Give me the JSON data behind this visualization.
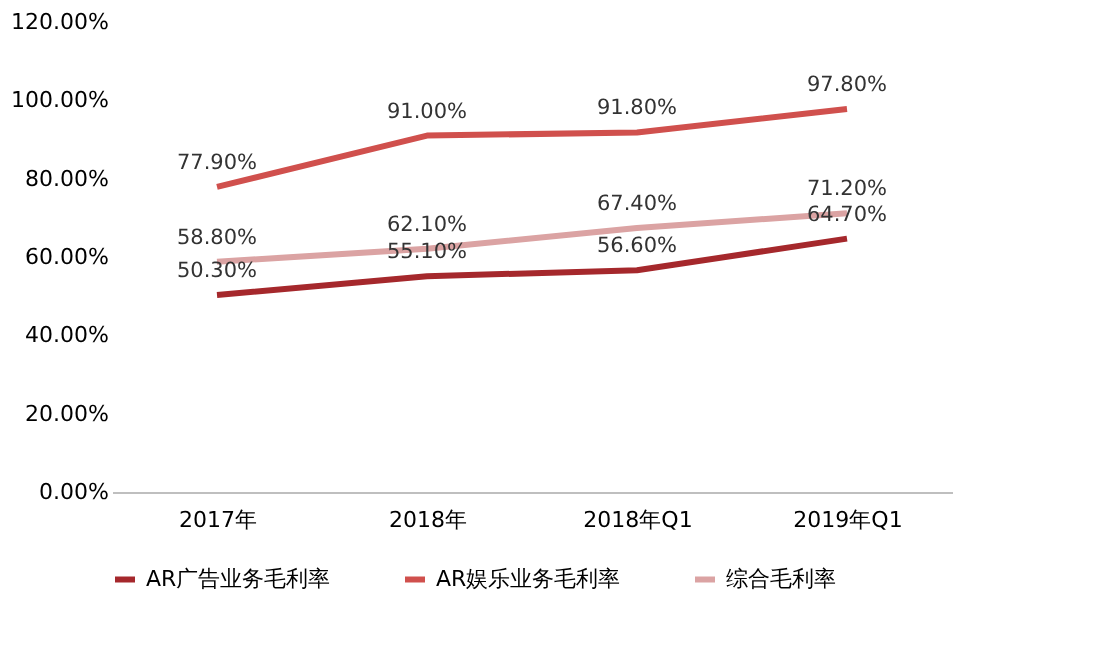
{
  "chart_data": {
    "type": "line",
    "categories": [
      "2017年",
      "2018年",
      "2018年Q1",
      "2019年Q1"
    ],
    "series": [
      {
        "name": "AR广告业务毛利率",
        "color": "#a5282c",
        "values": [
          50.3,
          55.1,
          56.6,
          64.7
        ],
        "value_labels": [
          "50.30%",
          "55.10%",
          "56.60%",
          "64.70%"
        ]
      },
      {
        "name": "AR娱乐业务毛利率",
        "color": "#d0504d",
        "values": [
          77.9,
          91.0,
          91.8,
          97.8
        ],
        "value_labels": [
          "77.90%",
          "91.00%",
          "91.80%",
          "97.80%"
        ]
      },
      {
        "name": "综合毛利率",
        "color": "#dba3a3",
        "values": [
          58.8,
          62.1,
          67.4,
          71.2
        ],
        "value_labels": [
          "58.80%",
          "62.10%",
          "67.40%",
          "71.20%"
        ]
      }
    ],
    "ylim": [
      0,
      120
    ],
    "yticks": [
      {
        "value": 0,
        "label": "0.00%"
      },
      {
        "value": 20,
        "label": "20.00%"
      },
      {
        "value": 40,
        "label": "40.00%"
      },
      {
        "value": 60,
        "label": "60.00%"
      },
      {
        "value": 80,
        "label": "80.00%"
      },
      {
        "value": 100,
        "label": "100.00%"
      },
      {
        "value": 120,
        "label": "120.00%"
      }
    ],
    "grid": false,
    "legend": "bottom",
    "marker": "none",
    "line_style": "solid"
  }
}
